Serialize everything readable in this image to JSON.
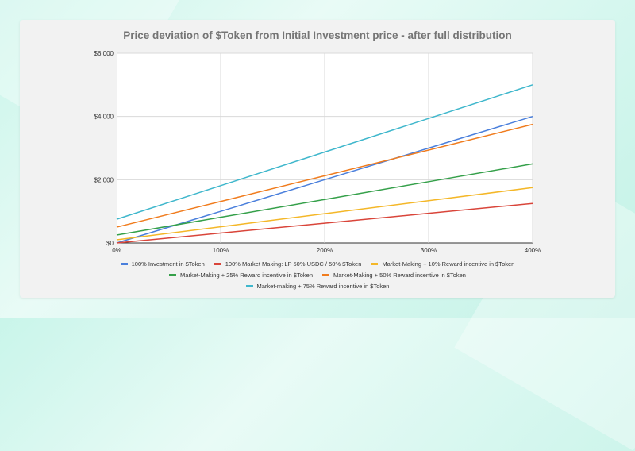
{
  "chart_data": {
    "type": "line",
    "title": "Price deviation of $Token from Initial Investment price - after full distribution",
    "xlabel": "",
    "ylabel": "",
    "x": [
      0,
      100,
      200,
      300,
      400
    ],
    "x_tick_labels": [
      "0%",
      "100%",
      "200%",
      "300%",
      "400%"
    ],
    "xlim": [
      0,
      400
    ],
    "ylim": [
      0,
      6000
    ],
    "y_ticks": [
      0,
      2000,
      4000,
      6000
    ],
    "y_tick_labels": [
      "$0",
      "$2,000",
      "$4,000",
      "$6,000"
    ],
    "grid": true,
    "legend_position": "bottom",
    "series": [
      {
        "name": "100% Investment in $Token",
        "color": "#4a7fdc",
        "values": [
          0,
          1000,
          2000,
          3000,
          4000
        ]
      },
      {
        "name": "100% Market Making: LP 50% USDC / 50% $Token",
        "color": "#d9453a",
        "values": [
          0,
          312.5,
          625,
          937.5,
          1250
        ]
      },
      {
        "name": "Market-Making + 10% Reward incentive in $Token",
        "color": "#f4b728",
        "values": [
          100,
          512.5,
          925,
          1337.5,
          1750
        ]
      },
      {
        "name": "Market-Making + 25% Reward incentive in $Token",
        "color": "#35a04a",
        "values": [
          250,
          812.5,
          1375,
          1937.5,
          2500
        ]
      },
      {
        "name": "Market-Making + 50% Reward incentive in $Token",
        "color": "#f07c1e",
        "values": [
          500,
          1312.5,
          2125,
          2937.5,
          3750
        ]
      },
      {
        "name": "Market-making + 75% Reward incentive in $Token",
        "color": "#3fb7cc",
        "values": [
          750,
          1812.5,
          2875,
          3937.5,
          5000
        ]
      }
    ],
    "legend_rows": [
      [
        0,
        1,
        2
      ],
      [
        3,
        4
      ],
      [
        5
      ]
    ]
  }
}
